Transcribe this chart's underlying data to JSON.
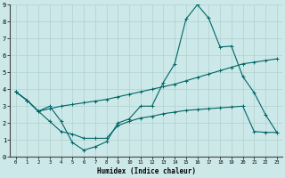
{
  "xlabel": "Humidex (Indice chaleur)",
  "xlim": [
    -0.5,
    23.5
  ],
  "ylim": [
    0,
    9
  ],
  "xticks": [
    0,
    1,
    2,
    3,
    4,
    5,
    6,
    7,
    8,
    9,
    10,
    11,
    12,
    13,
    14,
    15,
    16,
    17,
    18,
    19,
    20,
    21,
    22,
    23
  ],
  "yticks": [
    0,
    1,
    2,
    3,
    4,
    5,
    6,
    7,
    8,
    9
  ],
  "background_color": "#cce8e8",
  "grid_color": "#b0d0d0",
  "line_color": "#006666",
  "line1_x": [
    0,
    1,
    2,
    3,
    4,
    5,
    6,
    7,
    8,
    9,
    10,
    11,
    12,
    13,
    14,
    15,
    16,
    17,
    18,
    19,
    20,
    21,
    22,
    23
  ],
  "line1_y": [
    3.85,
    3.35,
    2.7,
    3.0,
    2.1,
    0.85,
    0.4,
    0.6,
    0.9,
    2.0,
    2.25,
    3.0,
    3.0,
    4.4,
    5.5,
    8.15,
    9.0,
    8.2,
    6.5,
    6.55,
    4.75,
    3.8,
    2.5,
    1.45
  ],
  "line2_x": [
    0,
    1,
    2,
    3,
    4,
    5,
    6,
    7,
    8,
    9,
    10,
    11,
    12,
    13,
    14,
    15,
    16,
    17,
    18,
    19,
    20,
    21,
    22,
    23
  ],
  "line2_y": [
    3.85,
    3.35,
    2.7,
    2.85,
    3.0,
    3.1,
    3.2,
    3.3,
    3.4,
    3.55,
    3.7,
    3.85,
    4.0,
    4.15,
    4.3,
    4.5,
    4.7,
    4.9,
    5.1,
    5.3,
    5.5,
    5.6,
    5.7,
    5.8
  ],
  "line3_x": [
    0,
    1,
    2,
    3,
    4,
    5,
    6,
    7,
    8,
    9,
    10,
    11,
    12,
    13,
    14,
    15,
    16,
    17,
    18,
    19,
    20,
    21,
    22,
    23
  ],
  "line3_y": [
    3.85,
    3.35,
    2.7,
    2.1,
    1.5,
    1.35,
    1.1,
    1.1,
    1.1,
    1.85,
    2.1,
    2.3,
    2.4,
    2.55,
    2.65,
    2.75,
    2.8,
    2.85,
    2.9,
    2.95,
    3.0,
    1.5,
    1.45,
    1.45
  ]
}
